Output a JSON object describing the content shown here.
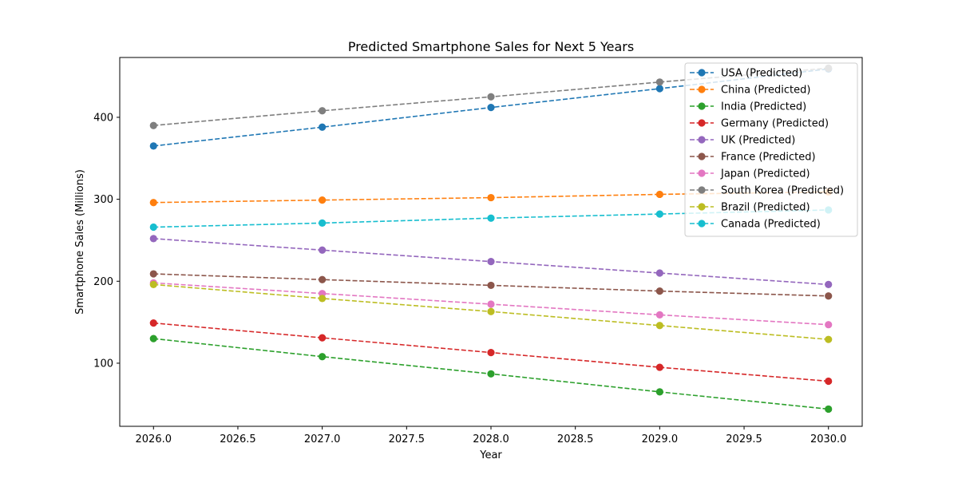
{
  "chart_data": {
    "type": "line",
    "title": "Predicted Smartphone Sales for Next 5 Years",
    "xlabel": "Year",
    "ylabel": "Smartphone Sales (Millions)",
    "x": [
      2026,
      2027,
      2028,
      2029,
      2030
    ],
    "xlim": [
      2025.8,
      2030.2
    ],
    "ylim": [
      23,
      473
    ],
    "xticks": [
      2026.0,
      2026.5,
      2027.0,
      2027.5,
      2028.0,
      2028.5,
      2029.0,
      2029.5,
      2030.0
    ],
    "xtick_labels": [
      "2026.0",
      "2026.5",
      "2027.0",
      "2027.5",
      "2028.0",
      "2028.5",
      "2029.0",
      "2029.5",
      "2030.0"
    ],
    "yticks": [
      100,
      200,
      300,
      400
    ],
    "ytick_labels": [
      "100",
      "200",
      "300",
      "400"
    ],
    "grid": false,
    "line_style": "dashed",
    "marker": "circle",
    "legend_position": "top-right",
    "series": [
      {
        "name": "USA (Predicted)",
        "color": "#1f77b4",
        "values": [
          365,
          388,
          412,
          435,
          459
        ]
      },
      {
        "name": "China (Predicted)",
        "color": "#ff7f0e",
        "values": [
          296,
          299,
          302,
          306,
          309
        ]
      },
      {
        "name": "India (Predicted)",
        "color": "#2ca02c",
        "values": [
          130,
          108,
          87,
          65,
          44
        ]
      },
      {
        "name": "Germany (Predicted)",
        "color": "#d62728",
        "values": [
          149,
          131,
          113,
          95,
          78
        ]
      },
      {
        "name": "UK (Predicted)",
        "color": "#9467bd",
        "values": [
          252,
          238,
          224,
          210,
          196
        ]
      },
      {
        "name": "France (Predicted)",
        "color": "#8c564b",
        "values": [
          209,
          202,
          195,
          188,
          182
        ]
      },
      {
        "name": "Japan (Predicted)",
        "color": "#e377c2",
        "values": [
          198,
          185,
          172,
          159,
          147
        ]
      },
      {
        "name": "South Korea (Predicted)",
        "color": "#7f7f7f",
        "values": [
          390,
          408,
          425,
          443,
          460
        ]
      },
      {
        "name": "Brazil (Predicted)",
        "color": "#bcbd22",
        "values": [
          196,
          179,
          163,
          146,
          129
        ]
      },
      {
        "name": "Canada (Predicted)",
        "color": "#17becf",
        "values": [
          266,
          271,
          277,
          282,
          287
        ]
      }
    ]
  }
}
